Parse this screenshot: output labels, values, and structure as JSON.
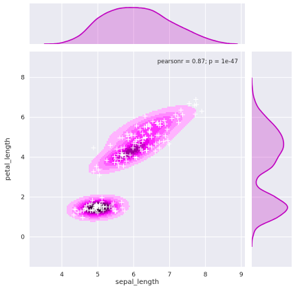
{
  "chart_data": {
    "type": "joint-kde-scatter",
    "xlabel": "sepal_length",
    "ylabel": "petal_length",
    "xlim": [
      3.1,
      9.1
    ],
    "ylim": [
      -1.5,
      9.3
    ],
    "xticks": [
      4,
      5,
      6,
      7,
      8,
      9
    ],
    "yticks": [
      0,
      2,
      4,
      6,
      8
    ],
    "grid": true,
    "background": "#EAEAF2",
    "kde_color": "#FF00FF",
    "marker_color": "#FFFFFF",
    "marginal_color": "#BF00BF",
    "annotation": "pearsonr = 0.87; p = 1e-47",
    "marginal_x_density": {
      "x": [
        3.5,
        4.0,
        4.5,
        5.0,
        5.5,
        6.0,
        6.5,
        7.0,
        7.5,
        8.0,
        8.5,
        8.9
      ],
      "density": [
        0.0,
        0.03,
        0.2,
        0.58,
        0.78,
        0.82,
        0.76,
        0.52,
        0.32,
        0.14,
        0.03,
        0.0
      ]
    },
    "marginal_y_density": {
      "y": [
        -0.5,
        0.0,
        0.5,
        1.0,
        1.5,
        2.0,
        2.5,
        3.0,
        3.5,
        4.0,
        4.5,
        5.0,
        5.5,
        6.0,
        6.5,
        7.0,
        7.5,
        8.0
      ],
      "density": [
        0.0,
        0.02,
        0.12,
        0.5,
        0.68,
        0.45,
        0.12,
        0.12,
        0.38,
        0.5,
        0.6,
        0.58,
        0.46,
        0.28,
        0.12,
        0.04,
        0.01,
        0.0
      ]
    },
    "kde_components": [
      {
        "mx": 5.0,
        "my": 1.46,
        "sx": 0.36,
        "sy": 0.28,
        "rho": 0.15,
        "w": 0.34
      },
      {
        "mx": 5.9,
        "my": 4.25,
        "sx": 0.52,
        "sy": 0.5,
        "rho": 0.75,
        "w": 0.36
      },
      {
        "mx": 6.5,
        "my": 5.5,
        "sx": 0.62,
        "sy": 0.55,
        "rho": 0.7,
        "w": 0.3
      }
    ],
    "points": [
      [
        5.1,
        1.4
      ],
      [
        4.9,
        1.4
      ],
      [
        4.7,
        1.3
      ],
      [
        4.6,
        1.5
      ],
      [
        5.0,
        1.4
      ],
      [
        5.4,
        1.7
      ],
      [
        4.6,
        1.4
      ],
      [
        5.0,
        1.5
      ],
      [
        4.4,
        1.4
      ],
      [
        4.9,
        1.5
      ],
      [
        5.4,
        1.5
      ],
      [
        4.8,
        1.6
      ],
      [
        4.8,
        1.4
      ],
      [
        4.3,
        1.1
      ],
      [
        5.8,
        1.2
      ],
      [
        5.7,
        1.5
      ],
      [
        5.4,
        1.3
      ],
      [
        5.1,
        1.4
      ],
      [
        5.7,
        1.7
      ],
      [
        5.1,
        1.5
      ],
      [
        5.4,
        1.7
      ],
      [
        5.1,
        1.5
      ],
      [
        4.6,
        1.0
      ],
      [
        5.1,
        1.7
      ],
      [
        4.8,
        1.9
      ],
      [
        5.0,
        1.6
      ],
      [
        5.0,
        1.6
      ],
      [
        5.2,
        1.5
      ],
      [
        5.2,
        1.4
      ],
      [
        4.7,
        1.6
      ],
      [
        4.8,
        1.6
      ],
      [
        5.4,
        1.5
      ],
      [
        5.2,
        1.5
      ],
      [
        5.5,
        1.4
      ],
      [
        4.9,
        1.5
      ],
      [
        5.0,
        1.2
      ],
      [
        5.5,
        1.3
      ],
      [
        4.9,
        1.4
      ],
      [
        4.4,
        1.3
      ],
      [
        5.1,
        1.5
      ],
      [
        5.0,
        1.3
      ],
      [
        4.5,
        1.3
      ],
      [
        4.4,
        1.3
      ],
      [
        5.0,
        1.6
      ],
      [
        5.1,
        1.9
      ],
      [
        4.8,
        1.4
      ],
      [
        5.1,
        1.6
      ],
      [
        4.6,
        1.4
      ],
      [
        5.3,
        1.5
      ],
      [
        5.0,
        1.4
      ],
      [
        7.0,
        4.7
      ],
      [
        6.4,
        4.5
      ],
      [
        6.9,
        4.9
      ],
      [
        5.5,
        4.0
      ],
      [
        6.5,
        4.6
      ],
      [
        5.7,
        4.5
      ],
      [
        6.3,
        4.7
      ],
      [
        4.9,
        3.3
      ],
      [
        6.6,
        4.6
      ],
      [
        5.2,
        3.9
      ],
      [
        5.0,
        3.5
      ],
      [
        5.9,
        4.2
      ],
      [
        6.0,
        4.0
      ],
      [
        6.1,
        4.7
      ],
      [
        5.6,
        3.6
      ],
      [
        6.7,
        4.4
      ],
      [
        5.6,
        4.5
      ],
      [
        5.8,
        4.1
      ],
      [
        6.2,
        4.5
      ],
      [
        5.6,
        3.9
      ],
      [
        5.9,
        4.8
      ],
      [
        6.1,
        4.0
      ],
      [
        6.3,
        4.9
      ],
      [
        6.1,
        4.7
      ],
      [
        6.4,
        4.3
      ],
      [
        6.6,
        4.4
      ],
      [
        6.8,
        4.8
      ],
      [
        6.7,
        5.0
      ],
      [
        6.0,
        4.5
      ],
      [
        5.7,
        3.5
      ],
      [
        5.5,
        3.8
      ],
      [
        5.5,
        3.7
      ],
      [
        5.8,
        3.9
      ],
      [
        6.0,
        5.1
      ],
      [
        5.4,
        4.5
      ],
      [
        6.0,
        4.5
      ],
      [
        6.7,
        4.7
      ],
      [
        6.3,
        4.4
      ],
      [
        5.6,
        4.1
      ],
      [
        5.5,
        4.0
      ],
      [
        5.5,
        4.4
      ],
      [
        6.1,
        4.6
      ],
      [
        5.8,
        4.0
      ],
      [
        5.0,
        3.3
      ],
      [
        5.6,
        4.2
      ],
      [
        5.7,
        4.2
      ],
      [
        5.7,
        4.2
      ],
      [
        6.2,
        4.3
      ],
      [
        5.1,
        3.0
      ],
      [
        5.7,
        4.1
      ],
      [
        6.3,
        6.0
      ],
      [
        5.8,
        5.1
      ],
      [
        7.1,
        5.9
      ],
      [
        6.3,
        5.6
      ],
      [
        6.5,
        5.8
      ],
      [
        7.6,
        6.6
      ],
      [
        4.9,
        4.5
      ],
      [
        7.3,
        6.3
      ],
      [
        6.7,
        5.8
      ],
      [
        7.2,
        6.1
      ],
      [
        6.5,
        5.1
      ],
      [
        6.4,
        5.3
      ],
      [
        6.8,
        5.5
      ],
      [
        5.7,
        5.0
      ],
      [
        5.8,
        5.1
      ],
      [
        6.4,
        5.3
      ],
      [
        6.5,
        5.5
      ],
      [
        7.7,
        6.7
      ],
      [
        7.7,
        6.9
      ],
      [
        6.0,
        5.0
      ],
      [
        6.9,
        5.7
      ],
      [
        5.6,
        4.9
      ],
      [
        7.7,
        6.7
      ],
      [
        6.3,
        4.9
      ],
      [
        6.7,
        5.7
      ],
      [
        7.2,
        6.0
      ],
      [
        6.2,
        4.8
      ],
      [
        6.1,
        4.9
      ],
      [
        6.4,
        5.6
      ],
      [
        7.2,
        5.8
      ],
      [
        7.4,
        6.1
      ],
      [
        7.9,
        6.4
      ],
      [
        6.4,
        5.6
      ],
      [
        6.3,
        5.1
      ],
      [
        6.1,
        5.6
      ],
      [
        7.7,
        6.1
      ],
      [
        6.3,
        5.6
      ],
      [
        6.4,
        5.5
      ],
      [
        6.0,
        4.8
      ],
      [
        6.9,
        5.4
      ],
      [
        6.7,
        5.6
      ],
      [
        6.9,
        5.1
      ],
      [
        5.8,
        5.1
      ],
      [
        6.8,
        5.9
      ],
      [
        6.7,
        5.7
      ],
      [
        6.7,
        5.2
      ],
      [
        6.3,
        5.0
      ],
      [
        6.5,
        5.2
      ],
      [
        6.2,
        5.4
      ],
      [
        5.9,
        5.1
      ]
    ]
  }
}
